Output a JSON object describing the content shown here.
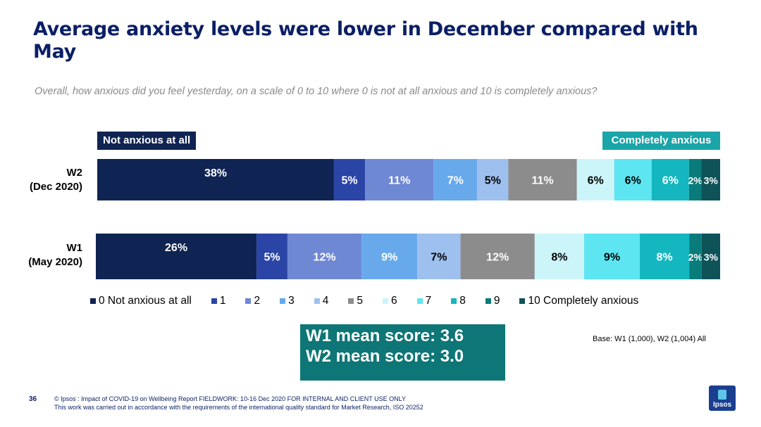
{
  "title": "Average anxiety levels were lower in December compared with May",
  "subtitle": "Overall, how anxious did you feel yesterday, on a scale of 0 to 10 where 0 is not at all anxious and 10 is completely anxious?",
  "tags": {
    "left": "Not anxious at all",
    "right": "Completely anxious"
  },
  "chart_data": {
    "type": "bar",
    "orientation": "horizontal",
    "stacked": true,
    "unit": "%",
    "categories": [
      {
        "line1": "W2",
        "line2": "(Dec 2020)"
      },
      {
        "line1": "W1",
        "line2": "(May 2020)"
      }
    ],
    "series": [
      {
        "name": "0 Not anxious at all",
        "color": "#0f2452",
        "values": [
          38,
          26
        ],
        "labels": [
          "38%",
          "26%"
        ]
      },
      {
        "name": "1",
        "color": "#2b45a6",
        "values": [
          5,
          5
        ],
        "labels": [
          "5%",
          "5%"
        ]
      },
      {
        "name": "2",
        "color": "#6f88d4",
        "values": [
          11,
          12
        ],
        "labels": [
          "11%",
          "12%"
        ]
      },
      {
        "name": "3",
        "color": "#68a9ec",
        "values": [
          7,
          9
        ],
        "labels": [
          "7%",
          "9%"
        ]
      },
      {
        "name": "4",
        "color": "#9ec0ee",
        "values": [
          5,
          7
        ],
        "labels": [
          "5%",
          "7%"
        ]
      },
      {
        "name": "5",
        "color": "#8c8c8c",
        "values": [
          11,
          12
        ],
        "labels": [
          "11%",
          "12%"
        ]
      },
      {
        "name": "6",
        "color": "#ccf5fa",
        "values": [
          6,
          8
        ],
        "labels": [
          "6%",
          "8%"
        ]
      },
      {
        "name": "7",
        "color": "#5de6f2",
        "values": [
          6,
          9
        ],
        "labels": [
          "6%",
          "9%"
        ]
      },
      {
        "name": "8",
        "color": "#14b7c0",
        "values": [
          6,
          8
        ],
        "labels": [
          "6%",
          "8%"
        ]
      },
      {
        "name": "9",
        "color": "#0a7b7b",
        "values": [
          2,
          2
        ],
        "labels": [
          "2%",
          "2%"
        ]
      },
      {
        "name": "10 Completely anxious",
        "color": "#0d5358",
        "values": [
          3,
          3
        ],
        "labels": [
          "3%",
          "3%"
        ]
      }
    ],
    "legend_position": "bottom",
    "grid": false
  },
  "mean": {
    "line1": "W1 mean score: 3.6",
    "line2": "W2 mean score: 3.0"
  },
  "base": "Base: W1 (1,000), W2 (1,004) All",
  "page_number": "36",
  "footer": {
    "line1": "© Ipsos : Impact of COVID-19 on Wellbeing Report FIELDWORK: 10-16 Dec 2020 FOR INTERNAL AND CLIENT USE ONLY",
    "line2": "This work was carried out in accordance with the requirements of the international quality standard for Market Research, ISO 20252"
  },
  "logo": "Ipsos"
}
